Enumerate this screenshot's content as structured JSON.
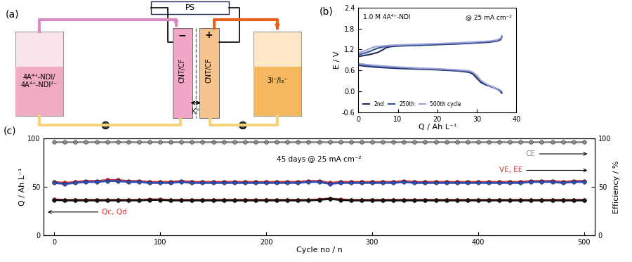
{
  "diagram": {
    "panel_label": "(a)",
    "power_supply": "PS",
    "negative": "−",
    "positive": "+",
    "negative_electrode": "CNT/CF",
    "positive_electrode": "CNT/CF",
    "membrane_ion": "K⁺",
    "anolyte": "4A⁴⁺-NDI/\n4A⁴⁺-NDI²⁻",
    "catholyte": "3I⁻/I₃⁻"
  },
  "chart_data": [
    {
      "type": "line",
      "panel_label": "(b)",
      "annotations": [
        "1.0 M 4A⁴⁺-NDI",
        "@ 25 mA cm⁻²"
      ],
      "x_label": "Q / Ah L⁻¹",
      "y_label": "E / V",
      "xlim": [
        0,
        40
      ],
      "xticks": [
        0,
        10,
        20,
        30,
        40
      ],
      "ylim": [
        -0.6,
        2.4
      ],
      "yticks": [
        -0.6,
        {
          "value": 0,
          "label": "0.0"
        },
        0.6,
        1.2,
        1.8,
        2.4
      ],
      "legend": "lower left",
      "series": [
        {
          "name": "2nd",
          "color": "#1f2a5a",
          "line_style": "solid",
          "x": [
            0,
            1,
            2,
            3,
            4,
            5,
            6,
            7,
            8,
            10,
            15,
            20,
            25,
            30,
            33,
            35,
            36,
            36.3
          ],
          "values": [
            1.0,
            1.02,
            1.04,
            1.06,
            1.09,
            1.12,
            1.18,
            1.25,
            1.28,
            1.3,
            1.32,
            1.34,
            1.36,
            1.39,
            1.41,
            1.44,
            1.48,
            1.55
          ],
          "discharge_x": [
            0,
            2,
            5,
            10,
            15,
            20,
            25,
            28,
            29,
            30,
            31,
            32,
            33,
            34,
            35,
            36,
            36.3
          ],
          "discharge_values": [
            0.75,
            0.72,
            0.69,
            0.66,
            0.64,
            0.62,
            0.59,
            0.55,
            0.5,
            0.38,
            0.26,
            0.2,
            0.16,
            0.12,
            0.07,
            0.0,
            -0.05
          ]
        },
        {
          "name": "250th",
          "color": "#2f4f9e",
          "line_style": "solid",
          "x": [
            0,
            1,
            2,
            3,
            4,
            5,
            6,
            7,
            8,
            10,
            15,
            20,
            25,
            30,
            33,
            35,
            36,
            36.3
          ],
          "values": [
            1.05,
            1.08,
            1.11,
            1.15,
            1.2,
            1.24,
            1.27,
            1.29,
            1.3,
            1.31,
            1.33,
            1.35,
            1.37,
            1.4,
            1.42,
            1.45,
            1.5,
            1.57
          ],
          "discharge_x": [
            0,
            2,
            5,
            10,
            15,
            20,
            25,
            28,
            29,
            30,
            31,
            32,
            33,
            34,
            35,
            36,
            36.3
          ],
          "discharge_values": [
            0.77,
            0.74,
            0.71,
            0.68,
            0.66,
            0.63,
            0.6,
            0.57,
            0.53,
            0.45,
            0.3,
            0.22,
            0.17,
            0.13,
            0.08,
            0.02,
            -0.03
          ]
        },
        {
          "name": "500th cycle",
          "color": "#9da2d4",
          "line_style": "solid",
          "x": [
            0,
            1,
            2,
            3,
            4,
            5,
            6,
            7,
            8,
            10,
            15,
            20,
            25,
            30,
            33,
            35,
            36,
            36.3
          ],
          "values": [
            1.1,
            1.14,
            1.18,
            1.23,
            1.27,
            1.29,
            1.3,
            1.31,
            1.32,
            1.33,
            1.35,
            1.37,
            1.39,
            1.42,
            1.44,
            1.47,
            1.52,
            1.6
          ],
          "discharge_x": [
            0,
            2,
            5,
            10,
            15,
            20,
            25,
            28,
            29,
            30,
            31,
            32,
            33,
            34,
            35,
            35.8
          ],
          "discharge_values": [
            0.8,
            0.77,
            0.74,
            0.7,
            0.67,
            0.65,
            0.62,
            0.59,
            0.55,
            0.45,
            0.32,
            0.24,
            0.18,
            0.13,
            0.07,
            0.0
          ]
        }
      ]
    },
    {
      "type": "line",
      "panel_label": "(c)",
      "annotations": [
        "45 days @ 25 mA cm⁻²",
        "CE",
        "VE, EE",
        "Qc, Qd"
      ],
      "x_label": "Cycle no / n",
      "y_label": "Q / Ah L⁻¹",
      "y2_label": "Efficiency / %",
      "xlim": [
        -10,
        510
      ],
      "xticks": [
        0,
        100,
        200,
        300,
        400,
        500
      ],
      "ylim": [
        0,
        100
      ],
      "yticks": [
        0,
        50,
        100
      ],
      "y2lim": [
        0,
        100
      ],
      "y2ticks": [
        0,
        50,
        100
      ],
      "x": [
        0,
        10,
        20,
        30,
        40,
        50,
        60,
        70,
        80,
        90,
        100,
        110,
        120,
        130,
        140,
        150,
        160,
        170,
        180,
        190,
        200,
        210,
        220,
        230,
        240,
        250,
        260,
        270,
        280,
        290,
        300,
        310,
        320,
        330,
        340,
        350,
        360,
        370,
        380,
        390,
        400,
        410,
        420,
        430,
        440,
        450,
        460,
        470,
        480,
        490,
        500
      ],
      "series": [
        {
          "color": "#e03030",
          "marker": "o",
          "line_style": "solid",
          "values": [
            37,
            36.5,
            36.5,
            36.5,
            36.5,
            36.5,
            36.5,
            36.5,
            36.5,
            37,
            37,
            36.5,
            36.5,
            36.5,
            36.5,
            36.5,
            36.5,
            36.5,
            36.5,
            36.5,
            36.5,
            36.5,
            36.5,
            36.5,
            36.5,
            37,
            38,
            37,
            36.5,
            36.5,
            36.5,
            36.5,
            36.5,
            36.5,
            36.5,
            36.5,
            36.5,
            36.5,
            36.5,
            36.5,
            36.5,
            36.5,
            36.5,
            36.5,
            36.5,
            36.5,
            36.5,
            36.5,
            36.5,
            36.5,
            36.5
          ]
        },
        {
          "color": "#111111",
          "marker": "o",
          "line_style": "solid",
          "values": [
            36.5,
            36,
            36,
            36,
            36,
            36,
            36,
            36,
            36,
            36.5,
            36.5,
            36,
            36,
            36,
            36,
            36,
            36,
            36,
            36,
            36,
            36,
            36,
            36,
            36,
            36,
            36.5,
            37.5,
            36.5,
            36,
            36,
            36,
            36,
            36,
            36,
            36,
            36,
            36,
            36,
            36,
            36,
            36,
            36,
            36,
            36,
            36,
            36,
            36,
            36,
            36,
            36,
            36
          ]
        },
        {
          "color": "#8c8c8c",
          "marker": "o",
          "line_style": "solid",
          "axis": "y2",
          "values": [
            96,
            96,
            96,
            96,
            96,
            96,
            96,
            96,
            96,
            96,
            96,
            96,
            96,
            96,
            96,
            96,
            96,
            96,
            96,
            96,
            96,
            96,
            96,
            96,
            96,
            96,
            96,
            96,
            96,
            96,
            96,
            96,
            96,
            96,
            96,
            96,
            96,
            96,
            96,
            96,
            96,
            96,
            96,
            96,
            96,
            96,
            96,
            96,
            96,
            96,
            96
          ]
        },
        {
          "color": "#e03030",
          "marker": "o",
          "line_style": "solid",
          "axis": "y2",
          "values": [
            55,
            54,
            55,
            56,
            56,
            57,
            57,
            56,
            56,
            55,
            55,
            55,
            56,
            55,
            55,
            55,
            55,
            55,
            55,
            55,
            55,
            55,
            55,
            55,
            56,
            56,
            54,
            55,
            55,
            55,
            55,
            55,
            55,
            56,
            55,
            55,
            55,
            55,
            55,
            55,
            55,
            55,
            55,
            55,
            55,
            56,
            56,
            56,
            55,
            56,
            56
          ]
        },
        {
          "color": "#3050b8",
          "marker": "o",
          "line_style": "solid",
          "axis": "y2",
          "values": [
            54,
            53,
            54,
            55,
            55,
            56,
            56,
            55,
            55,
            54,
            54,
            54,
            55,
            54,
            54,
            54,
            54,
            54,
            54,
            54,
            54,
            54,
            54,
            54,
            55,
            55,
            53,
            54,
            54,
            54,
            54,
            54,
            54,
            55,
            54,
            54,
            54,
            54,
            54,
            54,
            54,
            54,
            54,
            54,
            54,
            55,
            55,
            55,
            54,
            55,
            55
          ]
        }
      ]
    }
  ]
}
